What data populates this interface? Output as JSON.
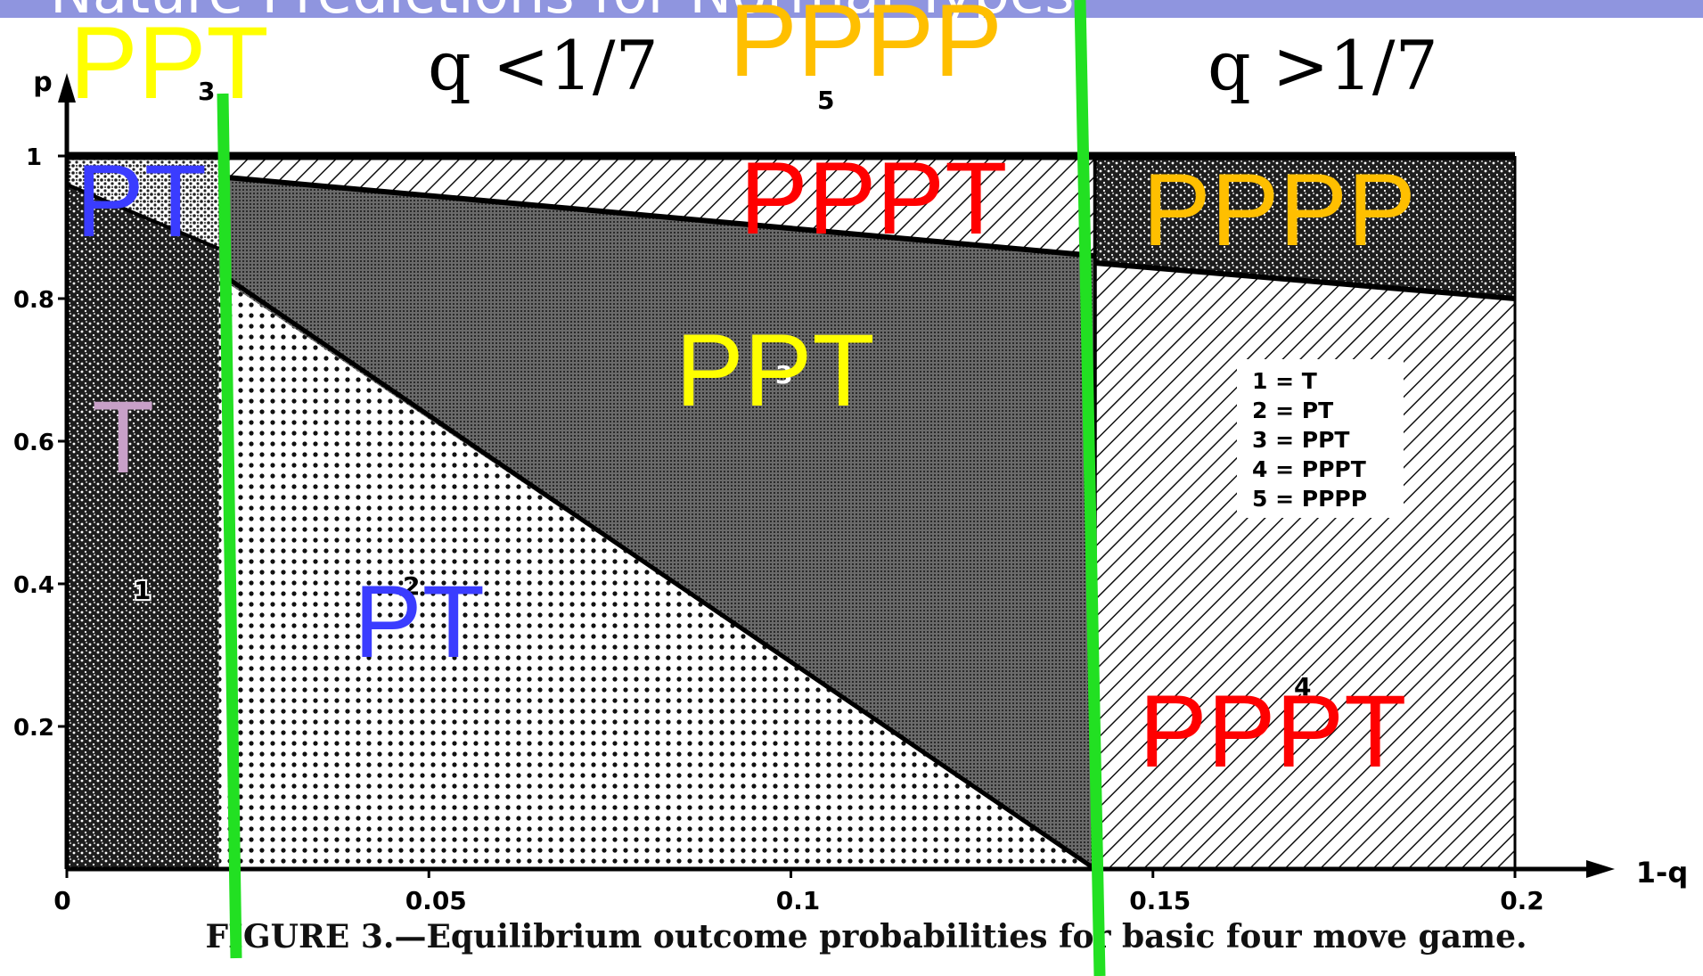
{
  "header": {
    "title": "Nature Predictions for Normal Types"
  },
  "colors": {
    "ppt": "#ffff00",
    "pppp": "#ffbf00",
    "pppt": "#ff0000",
    "pt": "#3a3cff",
    "t": "#c8a0c8",
    "divider": "#22e022"
  },
  "regions": {
    "top_left_left": "PPT",
    "top_left_mid": "q <1/7",
    "top_right_left": "PPPP",
    "top_right_mid": "q >1/7",
    "pt_top": "PT",
    "pppt_top": "PPPT",
    "pppp_right": "PPPP",
    "ppt_center": "PPT",
    "t_left": "T",
    "pt_center": "PT",
    "pppt_right": "PPPT"
  },
  "chart_data": {
    "type": "area",
    "title": "",
    "xlabel": "1-q",
    "ylabel": "p",
    "xlim": [
      0,
      0.2
    ],
    "ylim": [
      0,
      1
    ],
    "x_ticks": [
      "0",
      "0.05",
      "0.1",
      "0.15",
      "0.2"
    ],
    "y_ticks": [
      "0.2",
      "0.4",
      "0.6",
      "0.8",
      "1"
    ],
    "legend": [
      "1 = T",
      "2 = PT",
      "3 = PPT",
      "4 = PPPT",
      "5 = PPPP"
    ],
    "region_numbers": [
      "1",
      "2",
      "3",
      "4",
      "5",
      "3"
    ],
    "boundaries": {
      "q_divider_left_x": 0.021,
      "q_divider_right_x": 0.142,
      "pt_ppt_line": [
        [
          0.022,
          0.83
        ],
        [
          0.142,
          0.0
        ]
      ],
      "ppt_pppt_line": [
        [
          0.022,
          0.97
        ],
        [
          0.142,
          0.86
        ]
      ],
      "pppp_pppt_line_right": [
        [
          0.142,
          0.85
        ],
        [
          0.2,
          0.8
        ]
      ],
      "t_pt_line": [
        [
          0.0,
          0.96
        ],
        [
          0.021,
          0.87
        ]
      ]
    },
    "caption": "FIGURE 3.—Equilibrium outcome probabilities for basic four move game.",
    "grid": false
  }
}
